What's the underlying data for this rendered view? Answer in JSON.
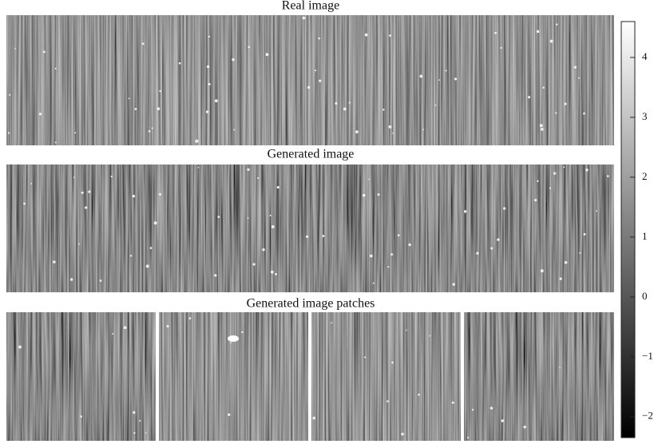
{
  "panels": [
    {
      "title": "Real image"
    },
    {
      "title": "Generated image"
    },
    {
      "title": "Generated image patches"
    }
  ],
  "colorbar": {
    "lim": [
      -2.35,
      4.6
    ],
    "ticks": [
      {
        "value": -2,
        "label": "−2"
      },
      {
        "value": -1,
        "label": "−1"
      },
      0,
      1,
      2,
      3,
      4
    ]
  }
}
